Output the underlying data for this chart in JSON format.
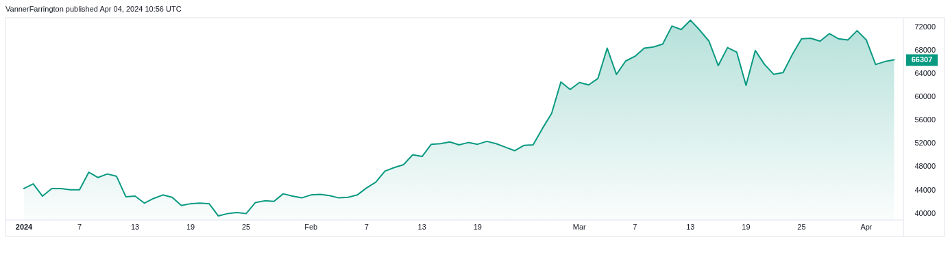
{
  "chart_data": {
    "type": "area",
    "title": "VannerFarrington published Apr 04, 2024 10:56 UTC",
    "x": [
      "2024-01-01",
      "2024-01-02",
      "2024-01-03",
      "2024-01-04",
      "2024-01-05",
      "2024-01-06",
      "2024-01-07",
      "2024-01-08",
      "2024-01-09",
      "2024-01-10",
      "2024-01-11",
      "2024-01-12",
      "2024-01-13",
      "2024-01-14",
      "2024-01-15",
      "2024-01-16",
      "2024-01-17",
      "2024-01-18",
      "2024-01-19",
      "2024-01-20",
      "2024-01-21",
      "2024-01-22",
      "2024-01-23",
      "2024-01-24",
      "2024-01-25",
      "2024-01-26",
      "2024-01-27",
      "2024-01-28",
      "2024-01-29",
      "2024-01-30",
      "2024-01-31",
      "2024-02-01",
      "2024-02-02",
      "2024-02-03",
      "2024-02-04",
      "2024-02-05",
      "2024-02-06",
      "2024-02-07",
      "2024-02-08",
      "2024-02-09",
      "2024-02-10",
      "2024-02-11",
      "2024-02-12",
      "2024-02-13",
      "2024-02-14",
      "2024-02-15",
      "2024-02-16",
      "2024-02-17",
      "2024-02-18",
      "2024-02-19",
      "2024-02-20",
      "2024-02-21",
      "2024-02-22",
      "2024-02-23",
      "2024-02-24",
      "2024-02-25",
      "2024-02-26",
      "2024-02-27",
      "2024-02-28",
      "2024-02-29",
      "2024-03-01",
      "2024-03-02",
      "2024-03-03",
      "2024-03-04",
      "2024-03-05",
      "2024-03-06",
      "2024-03-07",
      "2024-03-08",
      "2024-03-09",
      "2024-03-10",
      "2024-03-11",
      "2024-03-12",
      "2024-03-13",
      "2024-03-14",
      "2024-03-15",
      "2024-03-16",
      "2024-03-17",
      "2024-03-18",
      "2024-03-19",
      "2024-03-20",
      "2024-03-21",
      "2024-03-22",
      "2024-03-23",
      "2024-03-24",
      "2024-03-25",
      "2024-03-26",
      "2024-03-27",
      "2024-03-28",
      "2024-03-29",
      "2024-03-30",
      "2024-03-31",
      "2024-04-01",
      "2024-04-02",
      "2024-04-03",
      "2024-04-04"
    ],
    "series": [
      {
        "color": "#089981",
        "values": [
          44200,
          45000,
          42900,
          44200,
          44200,
          44000,
          44000,
          47000,
          46100,
          46700,
          46300,
          42800,
          42900,
          41700,
          42500,
          43100,
          42700,
          41300,
          41600,
          41700,
          41600,
          39500,
          39900,
          40100,
          39900,
          41800,
          42100,
          42000,
          43300,
          42900,
          42600,
          43100,
          43200,
          43000,
          42600,
          42700,
          43100,
          44300,
          45300,
          47200,
          47800,
          48300,
          50000,
          49700,
          51800,
          51900,
          52200,
          51700,
          52100,
          51800,
          52300,
          51900,
          51300,
          50700,
          51600,
          51700,
          54500,
          57100,
          62500,
          61200,
          62400,
          62000,
          63100,
          68300,
          63800,
          66100,
          66900,
          68300,
          68500,
          69000,
          72100,
          71500,
          73100,
          71400,
          69500,
          65300,
          68400,
          67600,
          61900,
          67900,
          65500,
          63800,
          64100,
          67200,
          69900,
          70000,
          69500,
          70800,
          69900,
          69700,
          71300,
          69700,
          65500,
          66000,
          66307
        ]
      }
    ],
    "xlim": [
      "2023-12-30",
      "2024-04-05"
    ],
    "xticks": [
      {
        "value": "2024-01-01",
        "label": "2024"
      },
      {
        "value": "2024-01-07",
        "label": "7"
      },
      {
        "value": "2024-01-13",
        "label": "13"
      },
      {
        "value": "2024-01-19",
        "label": "19"
      },
      {
        "value": "2024-01-25",
        "label": "25"
      },
      {
        "value": "2024-02-01",
        "label": "Feb"
      },
      {
        "value": "2024-02-07",
        "label": "7"
      },
      {
        "value": "2024-02-13",
        "label": "13"
      },
      {
        "value": "2024-02-19",
        "label": "19"
      },
      {
        "value": "2024-03-01",
        "label": "Mar"
      },
      {
        "value": "2024-03-07",
        "label": "7"
      },
      {
        "value": "2024-03-13",
        "label": "13"
      },
      {
        "value": "2024-03-19",
        "label": "19"
      },
      {
        "value": "2024-03-25",
        "label": "25"
      },
      {
        "value": "2024-04-01",
        "label": "Apr"
      }
    ],
    "ylim": [
      38800,
      73400
    ],
    "yticks": [
      40000,
      44000,
      48000,
      52000,
      56000,
      60000,
      64000,
      68000,
      72000
    ],
    "annotations": [
      {
        "text": "66307",
        "x": "2024-04-04",
        "y": 66307
      }
    ],
    "grid": false
  }
}
